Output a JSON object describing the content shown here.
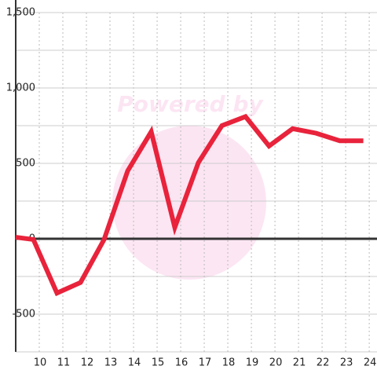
{
  "chart_data": {
    "type": "line",
    "watermark": "Powered by",
    "x": [
      9,
      9.75,
      10.75,
      11.75,
      12.75,
      13.75,
      14.75,
      15.75,
      16.75,
      17.75,
      18.75,
      19.75,
      20.75,
      21.75,
      22.75,
      23.75
    ],
    "series": [
      {
        "color": "#e8233b",
        "values": [
          10,
          -5,
          -360,
          -290,
          -5,
          450,
          710,
          75,
          505,
          750,
          810,
          615,
          730,
          700,
          650,
          650
        ]
      }
    ],
    "xlim": [
      9,
      24.33
    ],
    "xticks": [
      10,
      11,
      12,
      13,
      14,
      15,
      16,
      17,
      18,
      19,
      20,
      21,
      22,
      23,
      24
    ],
    "ylim": [
      -750,
      1500
    ],
    "yticks": [
      {
        "value": -500,
        "label": "-500"
      },
      0,
      500,
      {
        "value": 1000,
        "label": "1,000"
      },
      {
        "value": 1500,
        "label": "1,500"
      }
    ],
    "minor_yticks": [
      -750,
      -250,
      250,
      750,
      1250
    ],
    "grid": true
  }
}
